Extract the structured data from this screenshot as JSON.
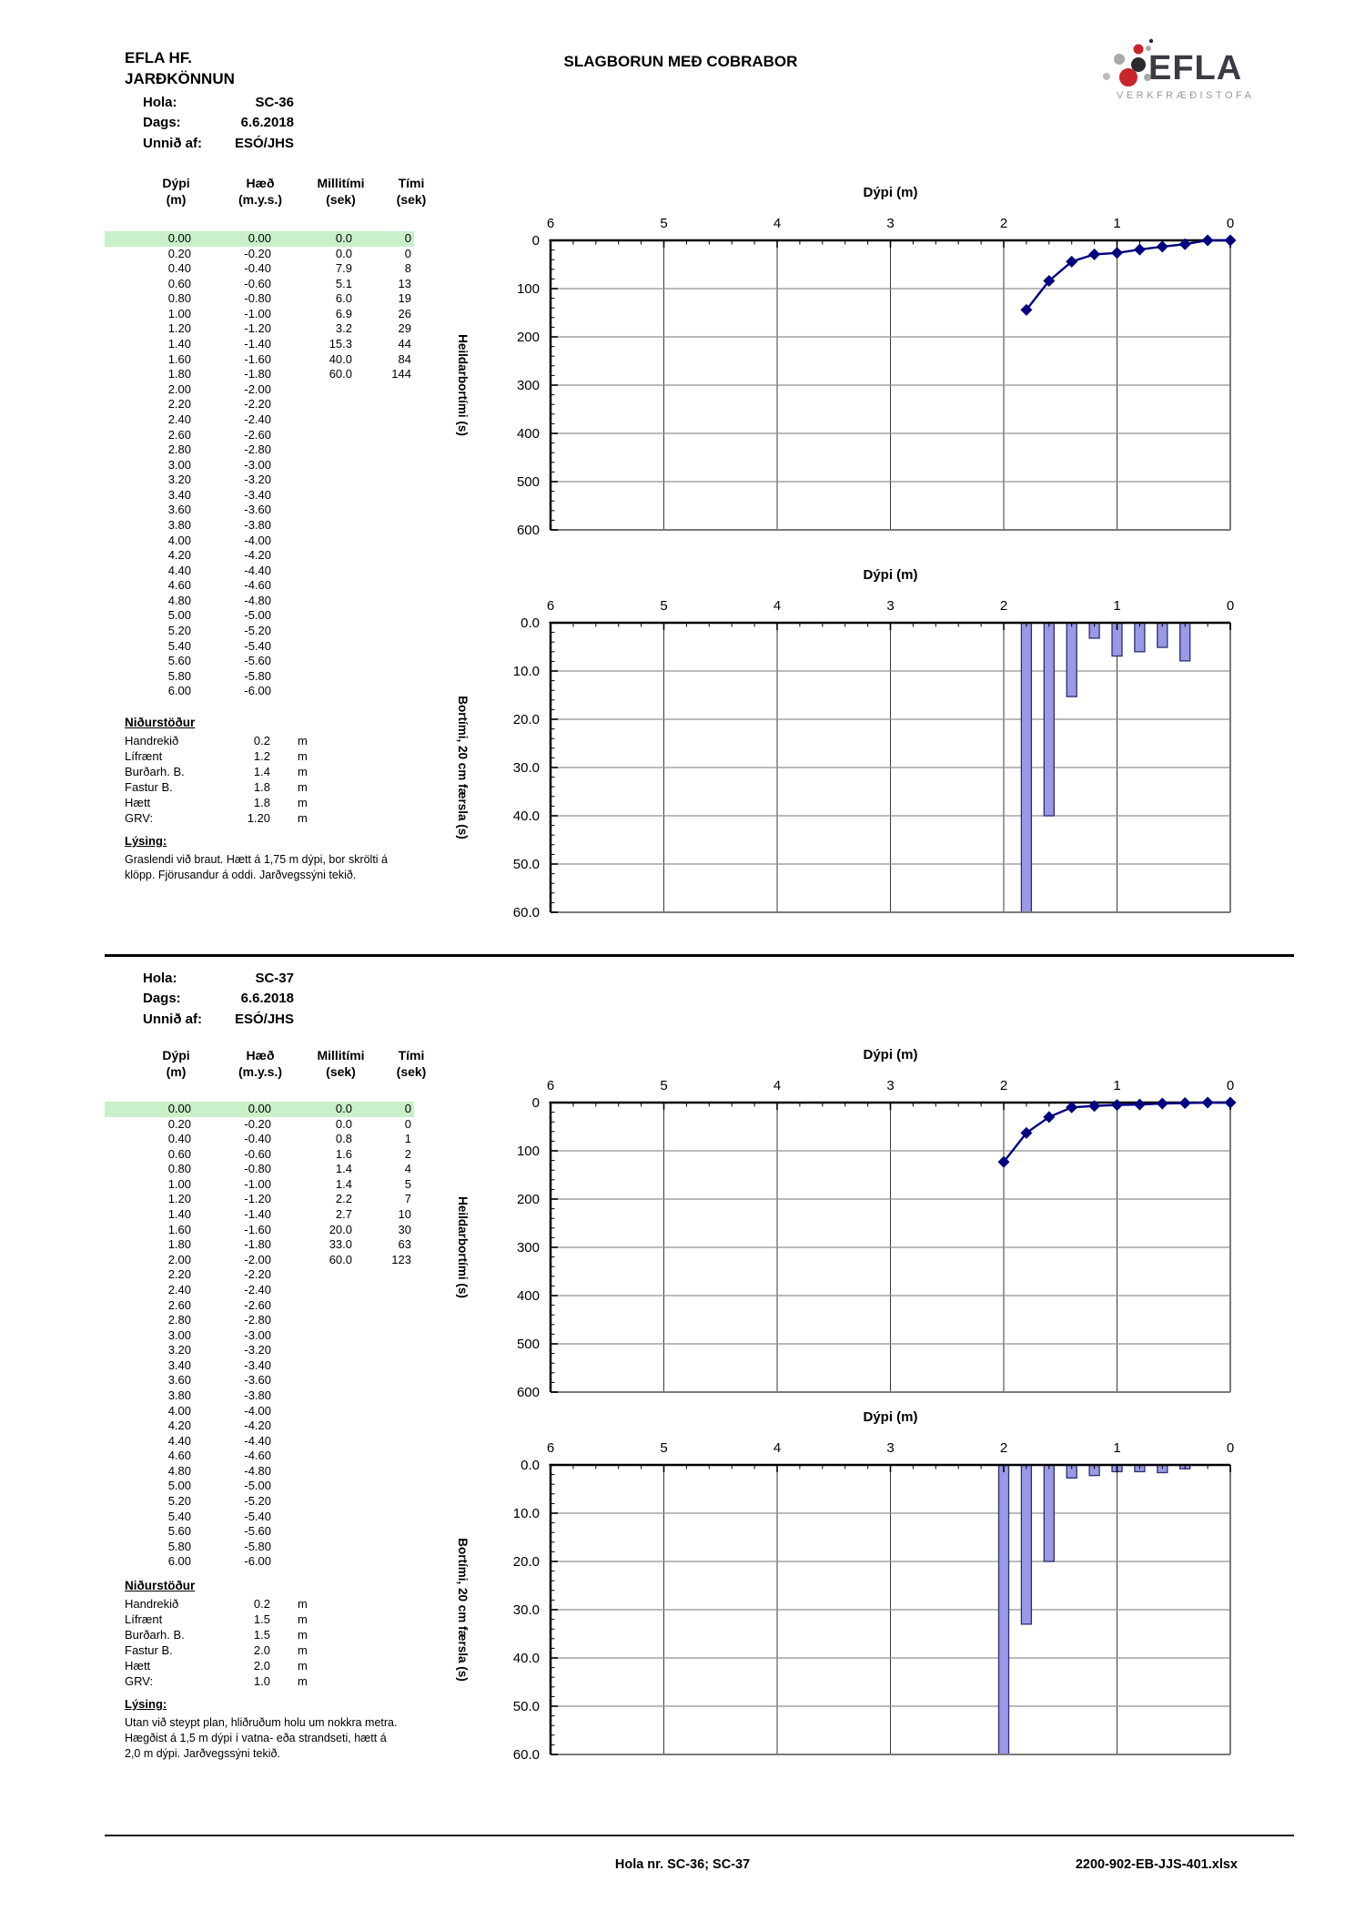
{
  "header": {
    "company": "EFLA HF.",
    "department": "JARÐKÖNNUN",
    "title": "SLAGBORUN MEÐ COBRABOR"
  },
  "logo": {
    "brand": "EFLA",
    "subtitle": "VERKFRÆÐISTOFA"
  },
  "colors": {
    "series_navy": "#000080",
    "bar_fill": "#9999e6",
    "bar_stroke": "#2e2e6e",
    "highlight_green": "#c9f0c9",
    "grid_gray": "#909090",
    "logo_red": "#c8242b",
    "logo_gray": "#a8a8a8",
    "logo_dark": "#2a2a2e"
  },
  "sections": [
    {
      "info": {
        "rows": [
          [
            "Hola:",
            "SC-36"
          ],
          [
            "Dags:",
            "6.6.2018"
          ],
          [
            "Unnið af:",
            "ESÓ/JHS"
          ]
        ]
      },
      "table": {
        "headers": [
          [
            "Dýpi",
            "(m)"
          ],
          [
            "Hæð",
            "(m.y.s.)"
          ],
          [
            "Millitími",
            "(sek)"
          ],
          [
            "Tími",
            "(sek)"
          ]
        ],
        "highlight_row": 0,
        "rows": [
          [
            "0.00",
            "0.00",
            "0.0",
            "0"
          ],
          [
            "0.20",
            "-0.20",
            "0.0",
            "0"
          ],
          [
            "0.40",
            "-0.40",
            "7.9",
            "8"
          ],
          [
            "0.60",
            "-0.60",
            "5.1",
            "13"
          ],
          [
            "0.80",
            "-0.80",
            "6.0",
            "19"
          ],
          [
            "1.00",
            "-1.00",
            "6.9",
            "26"
          ],
          [
            "1.20",
            "-1.20",
            "3.2",
            "29"
          ],
          [
            "1.40",
            "-1.40",
            "15.3",
            "44"
          ],
          [
            "1.60",
            "-1.60",
            "40.0",
            "84"
          ],
          [
            "1.80",
            "-1.80",
            "60.0",
            "144"
          ],
          [
            "2.00",
            "-2.00",
            "",
            ""
          ],
          [
            "2.20",
            "-2.20",
            "",
            ""
          ],
          [
            "2.40",
            "-2.40",
            "",
            ""
          ],
          [
            "2.60",
            "-2.60",
            "",
            ""
          ],
          [
            "2.80",
            "-2.80",
            "",
            ""
          ],
          [
            "3.00",
            "-3.00",
            "",
            ""
          ],
          [
            "3.20",
            "-3.20",
            "",
            ""
          ],
          [
            "3.40",
            "-3.40",
            "",
            ""
          ],
          [
            "3.60",
            "-3.60",
            "",
            ""
          ],
          [
            "3.80",
            "-3.80",
            "",
            ""
          ],
          [
            "4.00",
            "-4.00",
            "",
            ""
          ],
          [
            "4.20",
            "-4.20",
            "",
            ""
          ],
          [
            "4.40",
            "-4.40",
            "",
            ""
          ],
          [
            "4.60",
            "-4.60",
            "",
            ""
          ],
          [
            "4.80",
            "-4.80",
            "",
            ""
          ],
          [
            "5.00",
            "-5.00",
            "",
            ""
          ],
          [
            "5.20",
            "-5.20",
            "",
            ""
          ],
          [
            "5.40",
            "-5.40",
            "",
            ""
          ],
          [
            "5.60",
            "-5.60",
            "",
            ""
          ],
          [
            "5.80",
            "-5.80",
            "",
            ""
          ],
          [
            "6.00",
            "-6.00",
            "",
            ""
          ]
        ]
      },
      "results": {
        "title": "Niðurstöður",
        "rows": [
          [
            "Handrekið",
            "0.2",
            "m"
          ],
          [
            "Lífrænt",
            "1.2",
            "m"
          ],
          [
            "Burðarh. B.",
            "1.4",
            "m"
          ],
          [
            "Fastur B.",
            "1.8",
            "m"
          ],
          [
            "Hætt",
            "1.8",
            "m"
          ],
          [
            "GRV:",
            "1.20",
            "m"
          ]
        ]
      },
      "lysing": {
        "title": "Lýsing:",
        "lines": [
          "Graslendi við braut. Hætt á 1,75 m dýpi, bor skrölti á",
          "klöpp. Fjörusandur á oddi. Jarðvegssýni tekið."
        ]
      }
    },
    {
      "info": {
        "rows": [
          [
            "Hola:",
            "SC-37"
          ],
          [
            "Dags:",
            "6.6.2018"
          ],
          [
            "Unnið af:",
            "ESÓ/JHS"
          ]
        ]
      },
      "table": {
        "headers": [
          [
            "Dýpi",
            "(m)"
          ],
          [
            "Hæð",
            "(m.y.s.)"
          ],
          [
            "Millitími",
            "(sek)"
          ],
          [
            "Tími",
            "(sek)"
          ]
        ],
        "highlight_row": 0,
        "rows": [
          [
            "0.00",
            "0.00",
            "0.0",
            "0"
          ],
          [
            "0.20",
            "-0.20",
            "0.0",
            "0"
          ],
          [
            "0.40",
            "-0.40",
            "0.8",
            "1"
          ],
          [
            "0.60",
            "-0.60",
            "1.6",
            "2"
          ],
          [
            "0.80",
            "-0.80",
            "1.4",
            "4"
          ],
          [
            "1.00",
            "-1.00",
            "1.4",
            "5"
          ],
          [
            "1.20",
            "-1.20",
            "2.2",
            "7"
          ],
          [
            "1.40",
            "-1.40",
            "2.7",
            "10"
          ],
          [
            "1.60",
            "-1.60",
            "20.0",
            "30"
          ],
          [
            "1.80",
            "-1.80",
            "33.0",
            "63"
          ],
          [
            "2.00",
            "-2.00",
            "60.0",
            "123"
          ],
          [
            "2.20",
            "-2.20",
            "",
            ""
          ],
          [
            "2.40",
            "-2.40",
            "",
            ""
          ],
          [
            "2.60",
            "-2.60",
            "",
            ""
          ],
          [
            "2.80",
            "-2.80",
            "",
            ""
          ],
          [
            "3.00",
            "-3.00",
            "",
            ""
          ],
          [
            "3.20",
            "-3.20",
            "",
            ""
          ],
          [
            "3.40",
            "-3.40",
            "",
            ""
          ],
          [
            "3.60",
            "-3.60",
            "",
            ""
          ],
          [
            "3.80",
            "-3.80",
            "",
            ""
          ],
          [
            "4.00",
            "-4.00",
            "",
            ""
          ],
          [
            "4.20",
            "-4.20",
            "",
            ""
          ],
          [
            "4.40",
            "-4.40",
            "",
            ""
          ],
          [
            "4.60",
            "-4.60",
            "",
            ""
          ],
          [
            "4.80",
            "-4.80",
            "",
            ""
          ],
          [
            "5.00",
            "-5.00",
            "",
            ""
          ],
          [
            "5.20",
            "-5.20",
            "",
            ""
          ],
          [
            "5.40",
            "-5.40",
            "",
            ""
          ],
          [
            "5.60",
            "-5.60",
            "",
            ""
          ],
          [
            "5.80",
            "-5.80",
            "",
            ""
          ],
          [
            "6.00",
            "-6.00",
            "",
            ""
          ]
        ]
      },
      "results": {
        "title": "Niðurstöður",
        "rows": [
          [
            "Handrekið",
            "0.2",
            "m"
          ],
          [
            "Lífrænt",
            "1.5",
            "m"
          ],
          [
            "Burðarh. B.",
            "1.5",
            "m"
          ],
          [
            "Fastur B.",
            "2.0",
            "m"
          ],
          [
            "Hætt",
            "2.0",
            "m"
          ],
          [
            "GRV:",
            "1.0",
            "m"
          ]
        ]
      },
      "lysing": {
        "title": "Lýsing:",
        "lines": [
          "Utan við steypt plan, hliðruðum holu um nokkra metra.",
          "Hægðist á 1,5 m dýpi í vatna- eða strandseti, hætt á",
          "2,0 m dýpi. Jarðvegssýni tekið."
        ]
      }
    }
  ],
  "chart_data": [
    {
      "id": "sc36-cumulative",
      "type": "line",
      "title": "Dýpi (m)",
      "ylabel": "Heildarbortími (s)",
      "x_axis_reversed": true,
      "xlim": [
        6,
        0
      ],
      "ylim": [
        0,
        600
      ],
      "ytick": 100,
      "xtick": 1,
      "x_minor": 0.2,
      "x": [
        0,
        0.2,
        0.4,
        0.6,
        0.8,
        1.0,
        1.2,
        1.4,
        1.6,
        1.8
      ],
      "y": [
        0,
        0,
        8,
        13,
        19,
        26,
        29,
        44,
        84,
        144
      ],
      "y_inverted_down": true,
      "marker": "diamond",
      "legend": "none"
    },
    {
      "id": "sc36-interval",
      "type": "bar",
      "title": "Dýpi (m)",
      "ylabel": "Bortími,  20 cm færsla (s)",
      "x_axis_reversed": true,
      "xlim": [
        6,
        0
      ],
      "ylim": [
        0,
        60
      ],
      "ytick": 10,
      "xtick": 1,
      "x_minor": 0.2,
      "ylabel_format": "dec1",
      "categories": [
        0,
        0.2,
        0.4,
        0.6,
        0.8,
        1.0,
        1.2,
        1.4,
        1.6,
        1.8
      ],
      "values": [
        0,
        0,
        7.9,
        5.1,
        6.0,
        6.9,
        3.2,
        15.3,
        40.0,
        60.0
      ],
      "y_inverted_down": true,
      "legend": "none"
    },
    {
      "id": "sc37-cumulative",
      "type": "line",
      "title": "Dýpi (m)",
      "ylabel": "Heildarbortími (s)",
      "x_axis_reversed": true,
      "xlim": [
        6,
        0
      ],
      "ylim": [
        0,
        600
      ],
      "ytick": 100,
      "xtick": 1,
      "x_minor": 0.2,
      "x": [
        0,
        0.2,
        0.4,
        0.6,
        0.8,
        1.0,
        1.2,
        1.4,
        1.6,
        1.8,
        2.0
      ],
      "y": [
        0,
        0,
        1,
        2,
        4,
        5,
        7,
        10,
        30,
        63,
        123
      ],
      "y_inverted_down": true,
      "marker": "diamond",
      "legend": "none"
    },
    {
      "id": "sc37-interval",
      "type": "bar",
      "title": "Dýpi (m)",
      "ylabel": "Bortími, 20 cm færsla (s)",
      "x_axis_reversed": true,
      "xlim": [
        6,
        0
      ],
      "ylim": [
        0,
        60
      ],
      "ytick": 10,
      "xtick": 1,
      "x_minor": 0.2,
      "ylabel_format": "dec1",
      "categories": [
        0,
        0.2,
        0.4,
        0.6,
        0.8,
        1.0,
        1.2,
        1.4,
        1.6,
        1.8,
        2.0
      ],
      "values": [
        0,
        0,
        0.8,
        1.6,
        1.4,
        1.4,
        2.2,
        2.7,
        20.0,
        33.0,
        60.0
      ],
      "y_inverted_down": true,
      "legend": "none"
    }
  ],
  "footer": {
    "center": "Hola nr. SC-36; SC-37",
    "right": "2200-902-EB-JJS-401.xlsx"
  }
}
